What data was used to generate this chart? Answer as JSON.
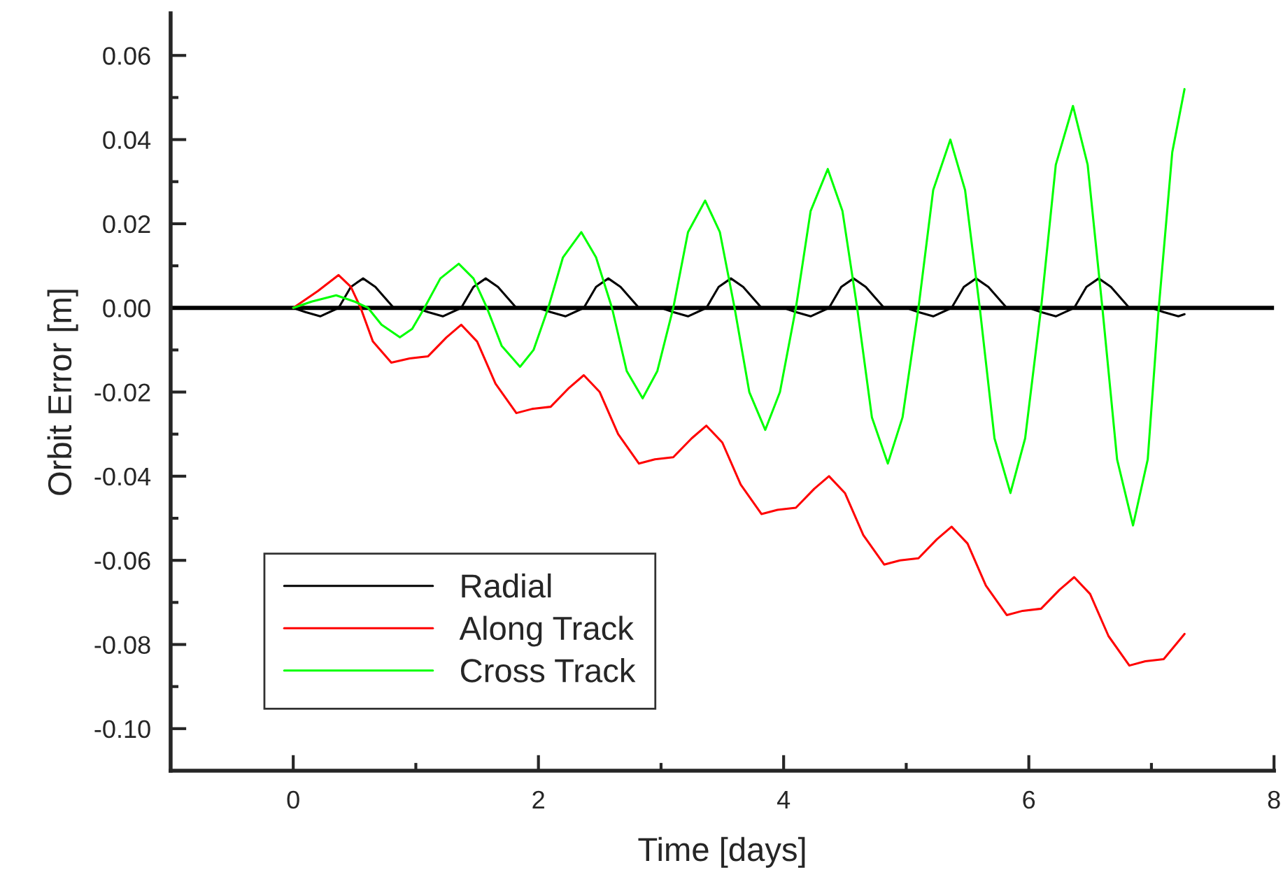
{
  "chart_data": {
    "type": "line",
    "xlabel": "Time [days]",
    "ylabel": "Orbit Error [m]",
    "xlim": [
      -1,
      8
    ],
    "ylim": [
      -0.11,
      0.07
    ],
    "xticks": [
      0,
      {
        "value": 1,
        "label": null
      },
      2,
      {
        "value": 3,
        "label": null
      },
      4,
      {
        "value": 5,
        "label": null
      },
      6,
      {
        "value": 7,
        "label": null
      },
      8
    ],
    "yticks": [
      {
        "value": -0.1,
        "label": "-0.10"
      },
      {
        "value": -0.09,
        "label": null
      },
      {
        "value": -0.08,
        "label": "-0.08"
      },
      {
        "value": -0.07,
        "label": null
      },
      {
        "value": -0.06,
        "label": "-0.06"
      },
      {
        "value": -0.05,
        "label": null
      },
      {
        "value": -0.04,
        "label": "-0.04"
      },
      {
        "value": -0.03,
        "label": null
      },
      {
        "value": -0.02,
        "label": "-0.02"
      },
      {
        "value": -0.01,
        "label": null
      },
      {
        "value": 0,
        "label": "0.00"
      },
      {
        "value": 0.01,
        "label": null
      },
      {
        "value": 0.02,
        "label": "0.02"
      },
      {
        "value": 0.03,
        "label": null
      },
      {
        "value": 0.04,
        "label": "0.04"
      },
      {
        "value": 0.05,
        "label": null
      },
      {
        "value": 0.06,
        "label": "0.06"
      }
    ],
    "grid": false,
    "legend": "bottom left",
    "line_style": "solid",
    "marker": "none",
    "ref_lines": [
      {
        "axis": "y",
        "value": 0,
        "color": "#000000"
      }
    ],
    "series": [
      {
        "name": "Radial",
        "color": "#000000",
        "x": [
          0,
          0.1,
          0.22,
          0.37,
          0.47,
          0.57,
          0.67,
          0.82,
          1.0,
          1.1,
          1.22,
          1.37,
          1.47,
          1.57,
          1.67,
          1.82,
          2.0,
          2.1,
          2.22,
          2.37,
          2.47,
          2.57,
          2.67,
          2.82,
          3.0,
          3.1,
          3.22,
          3.37,
          3.47,
          3.57,
          3.67,
          3.82,
          4.0,
          4.1,
          4.22,
          4.37,
          4.47,
          4.57,
          4.67,
          4.82,
          5.0,
          5.1,
          5.22,
          5.37,
          5.47,
          5.57,
          5.67,
          5.82,
          6.0,
          6.1,
          6.22,
          6.37,
          6.47,
          6.57,
          6.67,
          6.82,
          7.0,
          7.1,
          7.22,
          7.27
        ],
        "values": [
          0,
          -0.001,
          -0.002,
          0,
          0.005,
          0.007,
          0.005,
          0,
          0,
          -0.001,
          -0.002,
          0,
          0.005,
          0.007,
          0.005,
          0,
          0,
          -0.001,
          -0.002,
          0,
          0.005,
          0.007,
          0.005,
          0,
          0,
          -0.001,
          -0.002,
          0,
          0.005,
          0.007,
          0.005,
          0,
          0,
          -0.001,
          -0.002,
          0,
          0.005,
          0.007,
          0.005,
          0,
          0,
          -0.001,
          -0.002,
          0,
          0.005,
          0.007,
          0.005,
          0,
          0,
          -0.001,
          -0.002,
          0,
          0.005,
          0.007,
          0.005,
          0,
          0,
          -0.001,
          -0.002,
          -0.0015
        ]
      },
      {
        "name": "Along Track",
        "color": "#ff0000",
        "x": [
          0,
          0.2,
          0.37,
          0.47,
          0.55,
          0.65,
          0.8,
          0.95,
          1.1,
          1.25,
          1.37,
          1.5,
          1.65,
          1.82,
          1.95,
          2.1,
          2.25,
          2.37,
          2.5,
          2.65,
          2.82,
          2.95,
          3.1,
          3.25,
          3.37,
          3.5,
          3.65,
          3.82,
          3.95,
          4.1,
          4.25,
          4.37,
          4.5,
          4.65,
          4.82,
          4.95,
          5.1,
          5.25,
          5.37,
          5.5,
          5.65,
          5.82,
          5.95,
          6.1,
          6.25,
          6.37,
          6.5,
          6.65,
          6.82,
          6.95,
          7.1,
          7.27
        ],
        "values": [
          0,
          0.004,
          0.0078,
          0.005,
          0,
          -0.008,
          -0.013,
          -0.012,
          -0.0115,
          -0.007,
          -0.004,
          -0.008,
          -0.018,
          -0.025,
          -0.024,
          -0.0235,
          -0.019,
          -0.016,
          -0.02,
          -0.03,
          -0.037,
          -0.036,
          -0.0355,
          -0.031,
          -0.028,
          -0.032,
          -0.042,
          -0.049,
          -0.048,
          -0.0475,
          -0.043,
          -0.04,
          -0.044,
          -0.054,
          -0.061,
          -0.06,
          -0.0595,
          -0.055,
          -0.052,
          -0.056,
          -0.066,
          -0.073,
          -0.072,
          -0.0715,
          -0.067,
          -0.064,
          -0.068,
          -0.078,
          -0.085,
          -0.084,
          -0.0835,
          -0.0775
        ]
      },
      {
        "name": "Cross Track",
        "color": "#00ff00",
        "x": [
          0,
          0.15,
          0.35,
          0.5,
          0.61,
          0.72,
          0.87,
          0.97,
          1.07,
          1.2,
          1.35,
          1.47,
          1.58,
          1.7,
          1.85,
          1.96,
          2.08,
          2.2,
          2.35,
          2.47,
          2.6,
          2.72,
          2.85,
          2.97,
          3.1,
          3.22,
          3.36,
          3.48,
          3.6,
          3.72,
          3.85,
          3.97,
          4.1,
          4.22,
          4.36,
          4.48,
          4.6,
          4.72,
          4.85,
          4.97,
          5.1,
          5.22,
          5.36,
          5.48,
          5.6,
          5.72,
          5.85,
          5.97,
          6.1,
          6.22,
          6.36,
          6.48,
          6.6,
          6.72,
          6.85,
          6.97,
          7.06,
          7.17,
          7.27
        ],
        "values": [
          0,
          0.0015,
          0.003,
          0.0015,
          0,
          -0.004,
          -0.007,
          -0.005,
          0,
          0.007,
          0.0105,
          0.007,
          0,
          -0.009,
          -0.014,
          -0.01,
          0,
          0.012,
          0.018,
          0.012,
          0,
          -0.015,
          -0.0215,
          -0.015,
          0,
          0.018,
          0.0255,
          0.018,
          0,
          -0.02,
          -0.029,
          -0.02,
          0,
          0.023,
          0.033,
          0.023,
          0,
          -0.026,
          -0.037,
          -0.026,
          0,
          0.028,
          0.04,
          0.028,
          0,
          -0.031,
          -0.044,
          -0.031,
          0,
          0.034,
          0.048,
          0.034,
          0,
          -0.036,
          -0.0517,
          -0.036,
          0,
          0.037,
          0.052
        ]
      }
    ]
  }
}
